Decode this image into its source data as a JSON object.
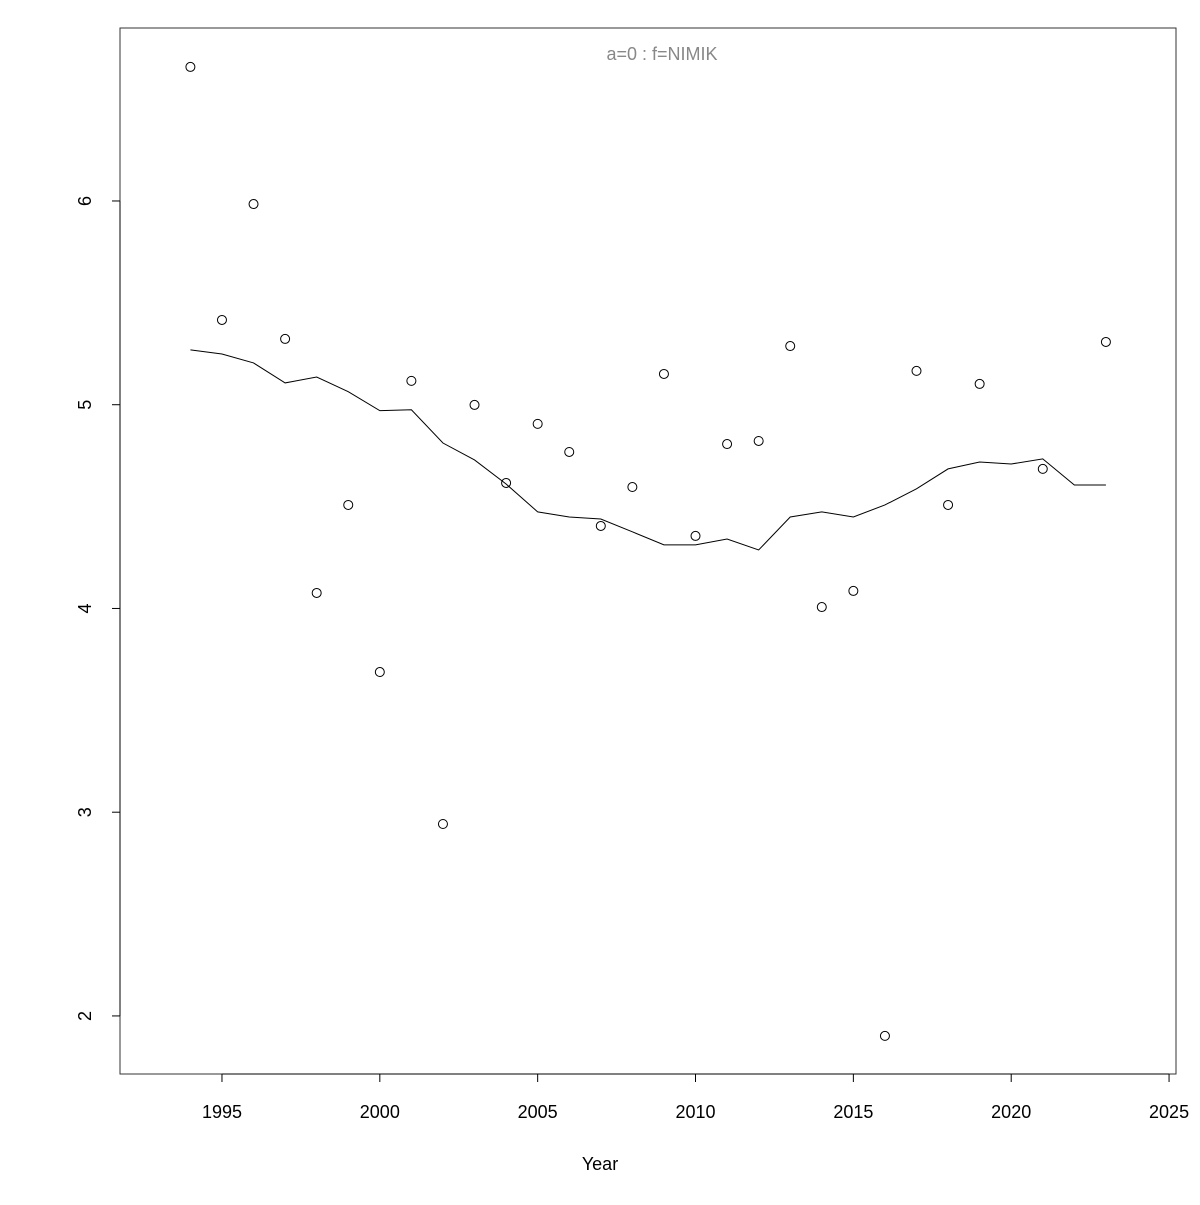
{
  "chart_data": {
    "type": "scatter",
    "title": "a=0  :  f=NIMIK",
    "x_label": "Year",
    "x": [
      1994,
      1995,
      1996,
      1997,
      1998,
      1999,
      2000,
      2001,
      2002,
      2003,
      2004,
      2005,
      2006,
      2007,
      2008,
      2009,
      2010,
      2011,
      2012,
      2013,
      2014,
      2015,
      2016,
      2017,
      2018,
      2019,
      2020,
      2021,
      2022,
      2023
    ],
    "series": [
      {
        "style": "points",
        "color": "#000000",
        "values": [
          6.658,
          5.416,
          5.985,
          5.323,
          4.076,
          4.508,
          3.688,
          5.117,
          2.942,
          4.999,
          4.616,
          4.906,
          4.768,
          4.405,
          4.596,
          5.151,
          4.356,
          4.807,
          4.822,
          5.288,
          4.007,
          4.086,
          1.902,
          5.166,
          4.508,
          5.102,
          null,
          4.685,
          null,
          5.308
        ]
      },
      {
        "style": "line",
        "color": "#000000",
        "values": [
          5.269,
          5.249,
          5.205,
          5.107,
          5.136,
          5.064,
          4.971,
          4.975,
          4.812,
          4.729,
          4.611,
          4.474,
          4.449,
          4.439,
          4.376,
          4.312,
          4.312,
          4.341,
          4.287,
          4.449,
          4.474,
          4.449,
          4.508,
          4.587,
          4.685,
          4.719,
          4.709,
          4.734,
          4.606,
          4.606
        ]
      }
    ],
    "xlim": [
      1991.77,
      2025.22
    ],
    "ylim": [
      1.715,
      6.849
    ],
    "xticks": [
      1995,
      2000,
      2005,
      2010,
      2015,
      2020,
      2025
    ],
    "yticks": [
      2,
      3,
      4,
      5,
      6
    ]
  }
}
